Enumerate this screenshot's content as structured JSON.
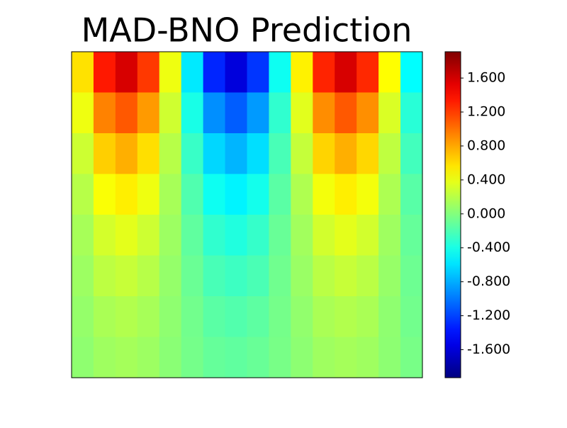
{
  "chart_data": {
    "type": "heatmap",
    "title": "MAD-BNO Prediction",
    "values": [
      [
        0.58,
        1.34,
        1.58,
        1.22,
        0.41,
        -0.57,
        -1.31,
        -1.58,
        -1.25,
        -0.44,
        0.52,
        1.3,
        1.58,
        1.28,
        0.47,
        -0.49
      ],
      [
        0.41,
        0.94,
        1.1,
        0.85,
        0.29,
        -0.4,
        -0.91,
        -1.1,
        -0.87,
        -0.31,
        0.36,
        0.9,
        1.1,
        0.89,
        0.33,
        -0.34
      ],
      [
        0.28,
        0.65,
        0.77,
        0.59,
        0.2,
        -0.28,
        -0.64,
        -0.77,
        -0.61,
        -0.22,
        0.25,
        0.63,
        0.77,
        0.62,
        0.23,
        -0.24
      ],
      [
        0.2,
        0.45,
        0.53,
        0.41,
        0.14,
        -0.19,
        -0.44,
        -0.53,
        -0.42,
        -0.15,
        0.17,
        0.43,
        0.53,
        0.43,
        0.16,
        -0.16
      ],
      [
        0.14,
        0.31,
        0.37,
        0.28,
        0.1,
        -0.13,
        -0.31,
        -0.37,
        -0.29,
        -0.1,
        0.12,
        0.3,
        0.37,
        0.3,
        0.11,
        -0.11
      ],
      [
        0.1,
        0.22,
        0.26,
        0.2,
        0.07,
        -0.09,
        -0.22,
        -0.26,
        -0.21,
        -0.07,
        0.09,
        0.21,
        0.26,
        0.21,
        0.08,
        -0.08
      ],
      [
        0.07,
        0.15,
        0.18,
        0.14,
        0.05,
        -0.06,
        -0.15,
        -0.18,
        -0.14,
        -0.05,
        0.06,
        0.15,
        0.18,
        0.15,
        0.05,
        -0.06
      ],
      [
        0.05,
        0.11,
        0.13,
        0.1,
        0.03,
        -0.05,
        -0.11,
        -0.13,
        -0.1,
        -0.04,
        0.04,
        0.11,
        0.13,
        0.11,
        0.04,
        -0.04
      ]
    ],
    "colormap": "jet",
    "clim": [
      -1.93,
      1.91
    ],
    "cticks": [
      {
        "value": -1.6,
        "label": "-1.600"
      },
      {
        "value": -1.2,
        "label": "-1.200"
      },
      {
        "value": -0.8,
        "label": "-0.800"
      },
      {
        "value": -0.4,
        "label": "-0.400"
      },
      {
        "value": 0,
        "label": "0.000"
      },
      {
        "value": 0.4,
        "label": "0.400"
      },
      {
        "value": 0.8,
        "label": "0.800"
      },
      {
        "value": 1.2,
        "label": "1.200"
      },
      {
        "value": 1.6,
        "label": "1.600"
      }
    ]
  }
}
